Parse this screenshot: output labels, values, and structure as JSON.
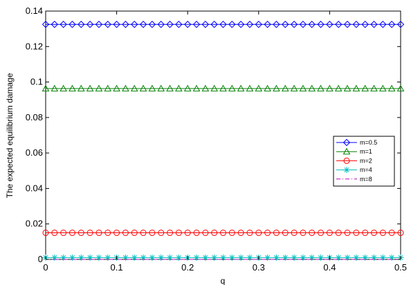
{
  "chart_data": {
    "type": "line",
    "title": "",
    "xlabel": "q",
    "ylabel": "The expected equilibrium  damage",
    "xlim": [
      0,
      0.5
    ],
    "ylim": [
      0,
      0.14
    ],
    "x_ticks": [
      "0",
      "0.1",
      "0.2",
      "0.3",
      "0.4",
      "0.5"
    ],
    "y_ticks": [
      "0",
      "0.02",
      "0.04",
      "0.06",
      "0.08",
      "0.1",
      "0.12",
      "0.14"
    ],
    "grid": false,
    "legend_position": "right",
    "x_start": 0.0,
    "x_step": 0.0125,
    "x_count": 41,
    "series": [
      {
        "name": "m=0.5",
        "y": 0.1325,
        "color": "#0000ff",
        "marker": "diamond",
        "line": "solid"
      },
      {
        "name": "m=1",
        "y": 0.0963,
        "color": "#008000",
        "marker": "triangle",
        "line": "solid"
      },
      {
        "name": "m=2",
        "y": 0.015,
        "color": "#ff0000",
        "marker": "circle",
        "line": "solid"
      },
      {
        "name": "m=4",
        "y": 0.001,
        "color": "#00bfbf",
        "marker": "star",
        "line": "solid"
      },
      {
        "name": "m=8",
        "y": 0.0,
        "color": "#bf00bf",
        "marker": "none",
        "line": "dashdot"
      }
    ]
  }
}
